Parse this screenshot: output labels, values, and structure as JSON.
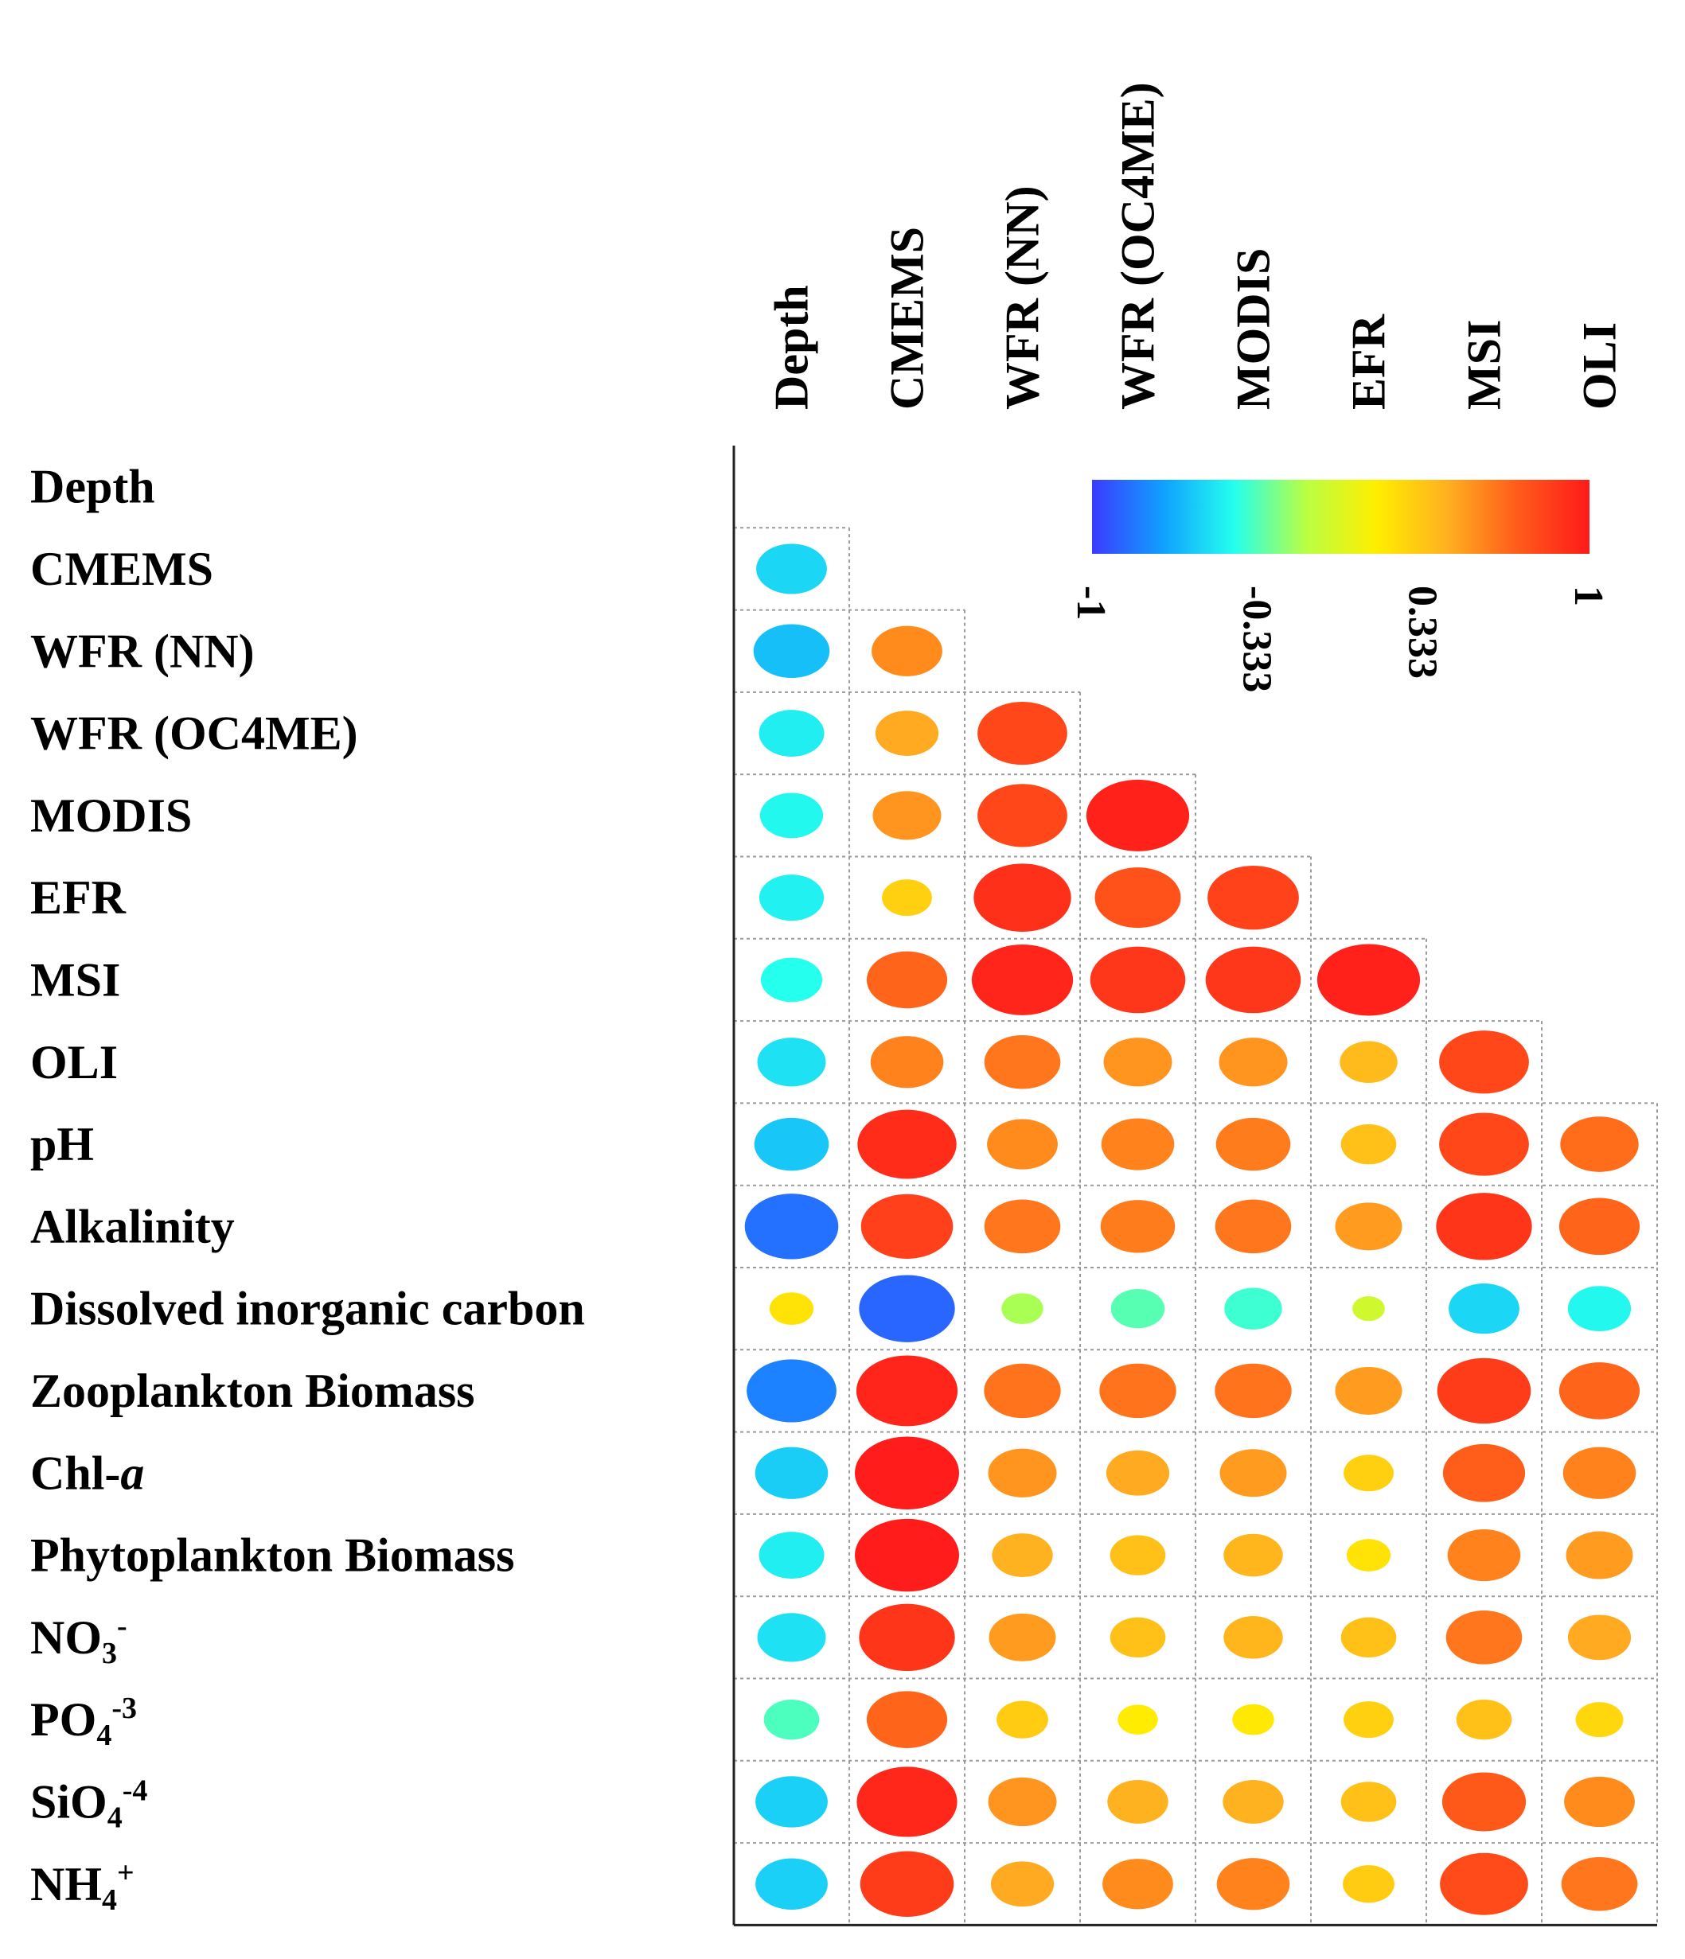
{
  "chart_data": {
    "type": "correlation-matrix",
    "title": "",
    "columns": [
      "Depth",
      "CMEMS",
      "WFR (NN)",
      "WFR (OC4ME)",
      "MODIS",
      "EFR",
      "MSI",
      "OLI"
    ],
    "rows": [
      {
        "label": "Depth",
        "parts": [
          {
            "t": "Depth",
            "s": ""
          }
        ]
      },
      {
        "label": "CMEMS",
        "parts": [
          {
            "t": "CMEMS",
            "s": ""
          }
        ]
      },
      {
        "label": "WFR (NN)",
        "parts": [
          {
            "t": "WFR (NN)",
            "s": ""
          }
        ]
      },
      {
        "label": "WFR (OC4ME)",
        "parts": [
          {
            "t": "WFR (OC4ME)",
            "s": ""
          }
        ]
      },
      {
        "label": "MODIS",
        "parts": [
          {
            "t": "MODIS",
            "s": ""
          }
        ]
      },
      {
        "label": "EFR",
        "parts": [
          {
            "t": "EFR",
            "s": ""
          }
        ]
      },
      {
        "label": "MSI",
        "parts": [
          {
            "t": "MSI",
            "s": ""
          }
        ]
      },
      {
        "label": "OLI",
        "parts": [
          {
            "t": "OLI",
            "s": ""
          }
        ]
      },
      {
        "label": "pH",
        "parts": [
          {
            "t": "pH",
            "s": ""
          }
        ]
      },
      {
        "label": "Alkalinity",
        "parts": [
          {
            "t": "Alkalinity",
            "s": ""
          }
        ]
      },
      {
        "label": "Dissolved inorganic carbon",
        "parts": [
          {
            "t": "Dissolved inorganic carbon",
            "s": ""
          }
        ]
      },
      {
        "label": "Zooplankton Biomass",
        "parts": [
          {
            "t": "Zooplankton Biomass",
            "s": ""
          }
        ]
      },
      {
        "label": "Chl-a",
        "parts": [
          {
            "t": "Chl-",
            "s": ""
          },
          {
            "t": "a",
            "s": "italic"
          }
        ]
      },
      {
        "label": "Phytoplankton Biomass",
        "parts": [
          {
            "t": "Phytoplankton Biomass",
            "s": ""
          }
        ]
      },
      {
        "label": "NO3-",
        "parts": [
          {
            "t": "NO",
            "s": ""
          },
          {
            "t": "3",
            "s": "sub"
          },
          {
            "t": "-",
            "s": "sup"
          }
        ]
      },
      {
        "label": "PO4-3",
        "parts": [
          {
            "t": "PO",
            "s": ""
          },
          {
            "t": "4",
            "s": "sub"
          },
          {
            "t": "-3",
            "s": "sup"
          }
        ]
      },
      {
        "label": "SiO4-4",
        "parts": [
          {
            "t": "SiO",
            "s": ""
          },
          {
            "t": "4",
            "s": "sub"
          },
          {
            "t": "-4",
            "s": "sup"
          }
        ]
      },
      {
        "label": "NH4+",
        "parts": [
          {
            "t": "NH",
            "s": ""
          },
          {
            "t": "4",
            "s": "sub"
          },
          {
            "t": "+",
            "s": "sup"
          }
        ]
      }
    ],
    "values": [
      [],
      [
        -0.55
      ],
      [
        -0.62,
        0.55
      ],
      [
        -0.48,
        0.45,
        0.8
      ],
      [
        -0.45,
        0.52,
        0.8,
        0.97
      ],
      [
        -0.47,
        0.28,
        0.9,
        0.75,
        0.82
      ],
      [
        -0.43,
        0.68,
        0.95,
        0.87,
        0.87,
        0.97
      ],
      [
        -0.52,
        0.58,
        0.62,
        0.52,
        0.52,
        0.38,
        0.8
      ],
      [
        -0.6,
        0.92,
        0.55,
        0.58,
        0.6,
        0.35,
        0.8,
        0.65
      ],
      [
        -0.85,
        0.83,
        0.62,
        0.6,
        0.62,
        0.5,
        0.88,
        0.68
      ],
      [
        0.2,
        -0.88,
        -0.17,
        -0.33,
        -0.38,
        -0.05,
        -0.55,
        -0.45
      ],
      [
        -0.8,
        0.95,
        0.63,
        0.63,
        0.63,
        0.5,
        0.85,
        0.68
      ],
      [
        -0.58,
        0.99,
        0.52,
        0.45,
        0.5,
        0.28,
        0.7,
        0.58
      ],
      [
        -0.48,
        0.99,
        0.42,
        0.35,
        0.4,
        0.2,
        0.58,
        0.5
      ],
      [
        -0.52,
        0.88,
        0.5,
        0.35,
        0.4,
        0.35,
        0.62,
        0.45
      ],
      [
        -0.35,
        0.68,
        0.3,
        0.15,
        0.17,
        0.28,
        0.35,
        0.25
      ],
      [
        -0.57,
        0.94,
        0.52,
        0.42,
        0.42,
        0.35,
        0.72,
        0.55
      ],
      [
        -0.57,
        0.85,
        0.45,
        0.55,
        0.58,
        0.3,
        0.78,
        0.62
      ]
    ],
    "colorbar": {
      "range": [
        -1,
        1
      ],
      "ticks": [
        "-1",
        "-0.333",
        "0.333",
        "1"
      ],
      "colors": [
        "#3b3bff",
        "#10a0ff",
        "#24ffee",
        "#b8ff44",
        "#ffee00",
        "#ffb020",
        "#ff5a1a",
        "#ff1a1a"
      ]
    },
    "legend": "top-right"
  }
}
